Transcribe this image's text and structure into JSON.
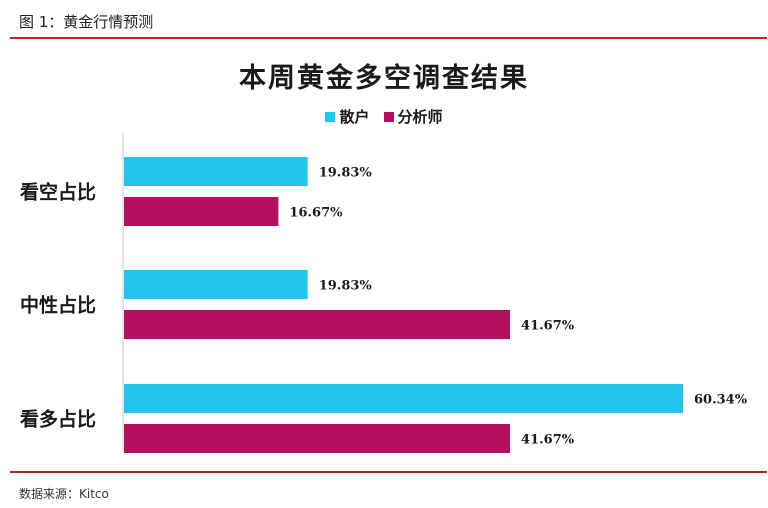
{
  "caption": "图 1：黄金行情预测",
  "source": "数据来源：Kitco",
  "colors": {
    "rule": "#b3282d",
    "retail": "#22c4ee",
    "analyst": "#b3115f"
  },
  "chart_data": {
    "type": "bar",
    "orientation": "horizontal",
    "title": "本周黄金多空调查结果",
    "categories": [
      "看空占比",
      "中性占比",
      "看多占比"
    ],
    "series": [
      {
        "name": "散户",
        "values": [
          19.83,
          19.83,
          60.34
        ],
        "labels": [
          "19.83%",
          "19.83%",
          "60.34%"
        ]
      },
      {
        "name": "分析师",
        "values": [
          16.67,
          41.67,
          41.67
        ],
        "labels": [
          "16.67%",
          "41.67%",
          "41.67%"
        ]
      }
    ],
    "xlim": [
      0,
      62
    ],
    "grid": false,
    "legend": "top-center"
  }
}
